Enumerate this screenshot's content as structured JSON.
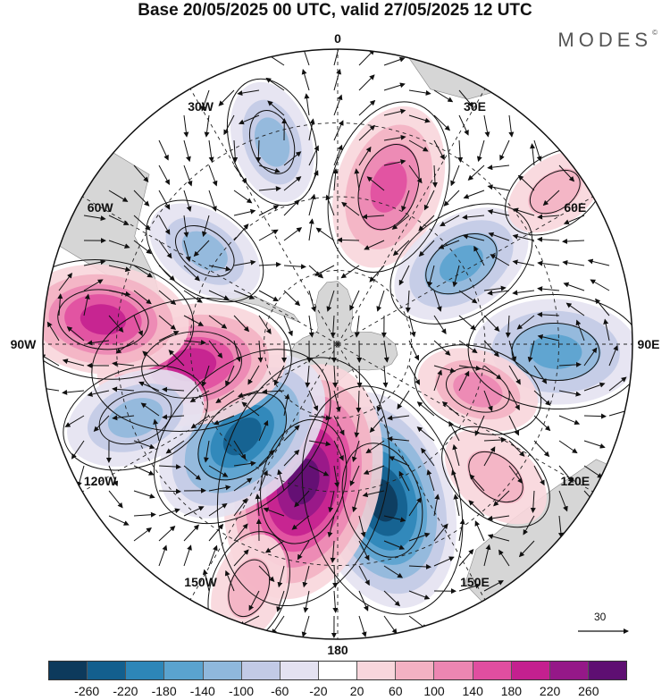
{
  "header": {
    "title": "Base 20/05/2025 00 UTC, valid 27/05/2025 12 UTC",
    "brand": "MODES",
    "brand_mark": "©"
  },
  "map": {
    "projection": "south-polar-stereographic",
    "longitude_labels": [
      {
        "text": "0",
        "lon": 0
      },
      {
        "text": "30E",
        "lon": 30
      },
      {
        "text": "60E",
        "lon": 60
      },
      {
        "text": "90E",
        "lon": 90
      },
      {
        "text": "120E",
        "lon": 120
      },
      {
        "text": "150E",
        "lon": 150
      },
      {
        "text": "180",
        "lon": 180
      },
      {
        "text": "150W",
        "lon": -150
      },
      {
        "text": "120W",
        "lon": -120
      },
      {
        "text": "90W",
        "lon": -90
      },
      {
        "text": "60W",
        "lon": -60
      },
      {
        "text": "30W",
        "lon": -30
      }
    ],
    "reference_vector_label": "30",
    "anomaly_centers": [
      {
        "sign": "pos",
        "lon": 18,
        "dist": 0.56,
        "mag": 150
      },
      {
        "sign": "neg",
        "lon": 57,
        "dist": 0.5,
        "mag": 120
      },
      {
        "sign": "neg",
        "lon": 92,
        "dist": 0.74,
        "mag": 150
      },
      {
        "sign": "pos",
        "lon": 108,
        "dist": 0.5,
        "mag": 80
      },
      {
        "sign": "pos",
        "lon": 130,
        "dist": 0.7,
        "mag": 70
      },
      {
        "sign": "neg",
        "lon": 164,
        "dist": 0.55,
        "mag": 240
      },
      {
        "sign": "pos",
        "lon": -166,
        "dist": 0.48,
        "mag": 270
      },
      {
        "sign": "neg",
        "lon": -134,
        "dist": 0.45,
        "mag": 200
      },
      {
        "sign": "pos",
        "lon": -98,
        "dist": 0.5,
        "mag": 190
      },
      {
        "sign": "pos",
        "lon": -84,
        "dist": 0.8,
        "mag": 160
      },
      {
        "sign": "neg",
        "lon": -110,
        "dist": 0.73,
        "mag": 110
      },
      {
        "sign": "neg",
        "lon": -55,
        "dist": 0.55,
        "mag": 80
      },
      {
        "sign": "neg",
        "lon": -18,
        "dist": 0.72,
        "mag": 80
      },
      {
        "sign": "pos",
        "lon": -160,
        "dist": 0.88,
        "mag": 60
      },
      {
        "sign": "pos",
        "lon": 55,
        "dist": 0.9,
        "mag": 50
      }
    ]
  },
  "legend": {
    "levels": [
      -260,
      -220,
      -180,
      -140,
      -100,
      -60,
      -20,
      20,
      60,
      100,
      140,
      180,
      220,
      260
    ],
    "tick_labels": [
      "-260",
      "-220",
      "-180",
      "-140",
      "-100",
      "-60",
      "-20",
      "20",
      "60",
      "100",
      "140",
      "180",
      "220",
      "260"
    ],
    "colors": [
      "#0d3a5c",
      "#135f8e",
      "#2d86b8",
      "#5aa3cf",
      "#8fb8dc",
      "#c2cae6",
      "#e4e2f1",
      "#ffffff",
      "#f8d6dc",
      "#f3b1c3",
      "#ec86b2",
      "#e04ea0",
      "#c4208f",
      "#951888",
      "#5e0f72"
    ]
  },
  "colors": {
    "land": "#d6d6d6",
    "grid": "#222222",
    "contour": "#111111"
  }
}
